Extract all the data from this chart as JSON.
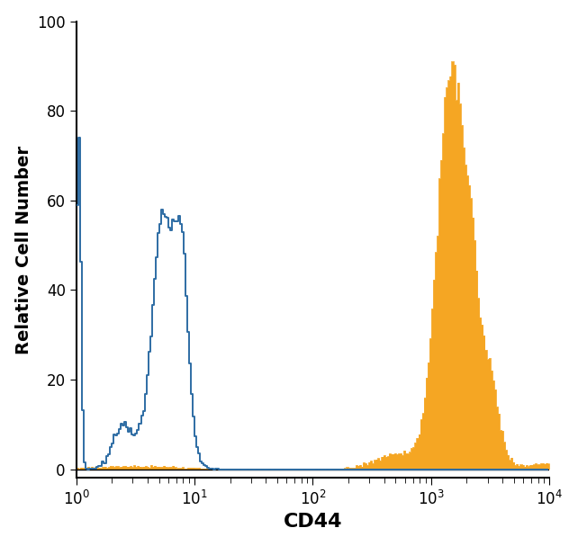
{
  "title": "",
  "xlabel": "CD44",
  "ylabel": "Relative Cell Number",
  "xlim_log": [
    1,
    10000
  ],
  "ylim": [
    -2,
    100
  ],
  "yticks": [
    0,
    20,
    40,
    60,
    80,
    100
  ],
  "background_color": "#ffffff",
  "open_histogram_color": "#2e6da4",
  "filled_histogram_color": "#f5a623",
  "xlabel_fontsize": 16,
  "ylabel_fontsize": 14,
  "ylabel_fontweight": "bold",
  "xlabel_fontweight": "bold"
}
